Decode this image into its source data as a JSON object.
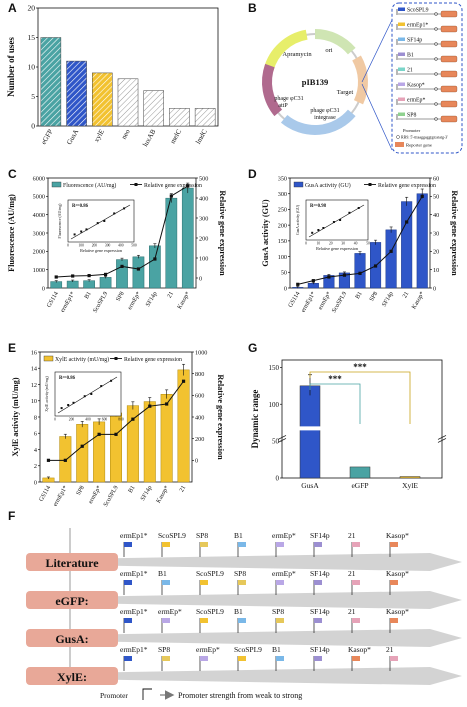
{
  "panels": {
    "A": "A",
    "B": "B",
    "C": "C",
    "D": "D",
    "E": "E",
    "F": "F",
    "G": "G"
  },
  "chart_data": [
    {
      "panel": "A",
      "type": "bar",
      "ylabel": "Number of uses",
      "ylim": [
        0,
        20
      ],
      "yticks": [
        0,
        5,
        10,
        15,
        20
      ],
      "categories": [
        "eGFP",
        "GusA",
        "xylE",
        "neo",
        "luxAB",
        "melC",
        "lmdC"
      ],
      "values": [
        15,
        11,
        9,
        8,
        6,
        3,
        3
      ],
      "colors": [
        "#4aa3a3",
        "#2f56c8",
        "#f2c230",
        "#ffffff",
        "#ffffff",
        "#ffffff",
        "#ffffff"
      ]
    },
    {
      "panel": "C",
      "type": "bar",
      "ylabel": "Fluorescence (AU/mg)",
      "y2label": "Relative gene expression",
      "legend": [
        "Fluorescence (AU/mg)",
        "Relative gene expression"
      ],
      "ylim": [
        0,
        6000
      ],
      "yticks": [
        0,
        1000,
        2000,
        3000,
        4000,
        5000,
        6000
      ],
      "y2lim": [
        -50,
        500
      ],
      "y2ticks": [
        0,
        100,
        200,
        300,
        400,
        500
      ],
      "categories": [
        "GS114",
        "ermEp1*",
        "B1",
        "ScoSPL9",
        "SP8",
        "ermEp*",
        "SF14p",
        "21",
        "Kasop*"
      ],
      "values": [
        350,
        380,
        400,
        580,
        1550,
        1700,
        2300,
        4900,
        5450
      ],
      "line_values": [
        5,
        10,
        12,
        18,
        58,
        45,
        95,
        410,
        460
      ],
      "inset": {
        "r2": "R²=0.86",
        "xlabel": "Relative gene expression",
        "ylabel": "Fluorescence (AU/mg)",
        "xticks": [
          "0",
          "100",
          "200",
          "300",
          "400",
          "500"
        ]
      }
    },
    {
      "panel": "D",
      "type": "bar",
      "ylabel": "GusA activity (GU)",
      "y2label": "Relative gene expression",
      "legend": [
        "GusA activity (GU)",
        "Relative gene expression"
      ],
      "ylim": [
        0,
        350
      ],
      "yticks": [
        0,
        50,
        100,
        150,
        200,
        250,
        300,
        350
      ],
      "y2lim": [
        0,
        60
      ],
      "y2ticks": [
        0,
        10,
        20,
        30,
        40,
        50,
        60
      ],
      "categories": [
        "GS114",
        "ermEp1*",
        "ermEp*",
        "ScoSPL9",
        "B1",
        "SP8",
        "SF14p",
        "21",
        "Kasop*"
      ],
      "values": [
        2,
        15,
        40,
        48,
        110,
        145,
        185,
        275,
        300
      ],
      "line_values": [
        2,
        4,
        6,
        7,
        8,
        12,
        20,
        36,
        50
      ],
      "inset": {
        "r2": "R²=0.98",
        "xlabel": "Relative gene expression",
        "ylabel": "GusA activity (GU)",
        "xticks": [
          "0",
          "10",
          "20",
          "30",
          "40",
          "50"
        ]
      }
    },
    {
      "panel": "E",
      "type": "bar",
      "ylabel": "XylE activity (mU/mg)",
      "y2label": "Relative gene expression",
      "legend": [
        "XylE activity (mU/mg)",
        "Relative gene expression"
      ],
      "ylim": [
        0,
        16
      ],
      "yticks": [
        0,
        2,
        4,
        6,
        8,
        10,
        12,
        14,
        16
      ],
      "y2lim": [
        -200,
        1000
      ],
      "y2ticks": [
        0,
        200,
        400,
        600,
        800,
        1000
      ],
      "categories": [
        "GS114",
        "ermEp1*",
        "SP8",
        "ermEp*",
        "ScoSPL9",
        "B1",
        "SF14p",
        "Kasop*",
        "21"
      ],
      "values": [
        0.5,
        5.6,
        7.1,
        7.4,
        8.5,
        9.4,
        9.9,
        10.8,
        13.8
      ],
      "line_values": [
        0,
        0,
        130,
        240,
        240,
        380,
        500,
        520,
        730
      ],
      "inset": {
        "r2": "R²=0.86",
        "xlabel": "",
        "ylabel": "XylE activity (mU/mg)",
        "xticks": [
          "0",
          "200",
          "400",
          "600",
          "800"
        ]
      }
    },
    {
      "panel": "G",
      "type": "bar",
      "ylabel": "Dynamic range",
      "yticks": [
        0,
        50,
        100,
        150
      ],
      "ylim": [
        0,
        150
      ],
      "categories": [
        "GusA",
        "eGFP",
        "XylE"
      ],
      "values": [
        125,
        15,
        2
      ],
      "colors": [
        "#2f56c8",
        "#4aa3a3",
        "#f2c230"
      ],
      "significance": [
        "***",
        "***"
      ]
    }
  ],
  "plasmid": {
    "name": "pIB139",
    "features": [
      "Apramycin",
      "ori",
      "Target",
      "phage φC31",
      "attP",
      "phage φC31",
      "integrase"
    ],
    "promoters": [
      "ScoSPL9",
      "ermEp1*",
      "SF14p",
      "B1",
      "21",
      "Kasop*",
      "ermEp*",
      "SP8"
    ],
    "legend_promoter": "Promoter",
    "legend_rbs": "RBS: 5'-tttaaggaggtgtcatatg-3'",
    "legend_reporter": "Reporter gene"
  },
  "rankings": {
    "caption_promoter": "Promoter",
    "caption_strength": "Promoter strength from weak to strong",
    "rows": [
      {
        "label": "Literature",
        "items": [
          "ermEp1*",
          "ScoSPL9",
          "SP8",
          "B1",
          "ermEp*",
          "SF14p",
          "21",
          "Kasop*"
        ]
      },
      {
        "label": "eGFP:",
        "items": [
          "ermEp1*",
          "B1",
          "ScoSPL9",
          "SP8",
          "ermEp*",
          "SF14p",
          "21",
          "Kasop*"
        ]
      },
      {
        "label": "GusA:",
        "items": [
          "ermEp1*",
          "ermEp*",
          "ScoSPL9",
          "B1",
          "SP8",
          "SF14p",
          "21",
          "Kasop*"
        ]
      },
      {
        "label": "XylE:",
        "items": [
          "ermEp1*",
          "SP8",
          "ermEp*",
          "ScoSPL9",
          "B1",
          "SF14p",
          "Kasop*",
          "21"
        ]
      }
    ]
  }
}
